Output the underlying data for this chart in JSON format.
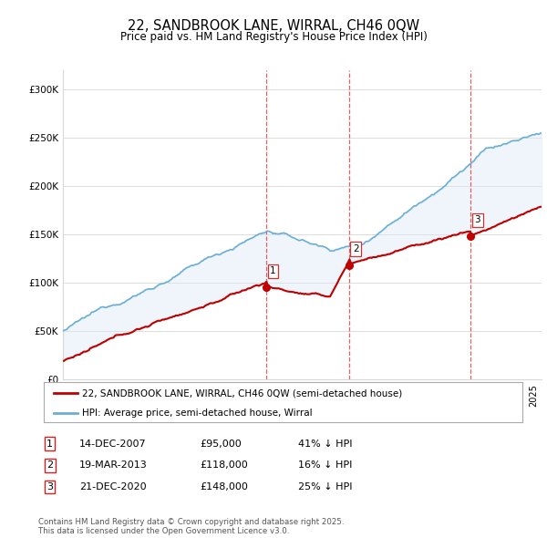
{
  "title": "22, SANDBROOK LANE, WIRRAL, CH46 0QW",
  "subtitle": "Price paid vs. HM Land Registry's House Price Index (HPI)",
  "ylabel_ticks": [
    "£0",
    "£50K",
    "£100K",
    "£150K",
    "£200K",
    "£250K",
    "£300K"
  ],
  "ytick_values": [
    0,
    50000,
    100000,
    150000,
    200000,
    250000,
    300000
  ],
  "ylim": [
    0,
    320000
  ],
  "xlim_start": 1995,
  "xlim_end": 2025.5,
  "hpi_color": "#6aaed6",
  "price_color": "#c00000",
  "shade_color": "#dce9f5",
  "transactions": [
    {
      "date_num": 2007.95,
      "price": 95000,
      "label": "1"
    },
    {
      "date_num": 2013.22,
      "price": 118000,
      "label": "2"
    },
    {
      "date_num": 2020.97,
      "price": 148000,
      "label": "3"
    }
  ],
  "legend_line1": "22, SANDBROOK LANE, WIRRAL, CH46 0QW (semi-detached house)",
  "legend_line2": "HPI: Average price, semi-detached house, Wirral",
  "table_rows": [
    {
      "num": "1",
      "date": "14-DEC-2007",
      "price": "£95,000",
      "pct": "41% ↓ HPI"
    },
    {
      "num": "2",
      "date": "19-MAR-2013",
      "price": "£118,000",
      "pct": "16% ↓ HPI"
    },
    {
      "num": "3",
      "date": "21-DEC-2020",
      "price": "£148,000",
      "pct": "25% ↓ HPI"
    }
  ],
  "footnote": "Contains HM Land Registry data © Crown copyright and database right 2025.\nThis data is licensed under the Open Government Licence v3.0.",
  "background_color": "#ffffff",
  "grid_color": "#d8d8d8"
}
